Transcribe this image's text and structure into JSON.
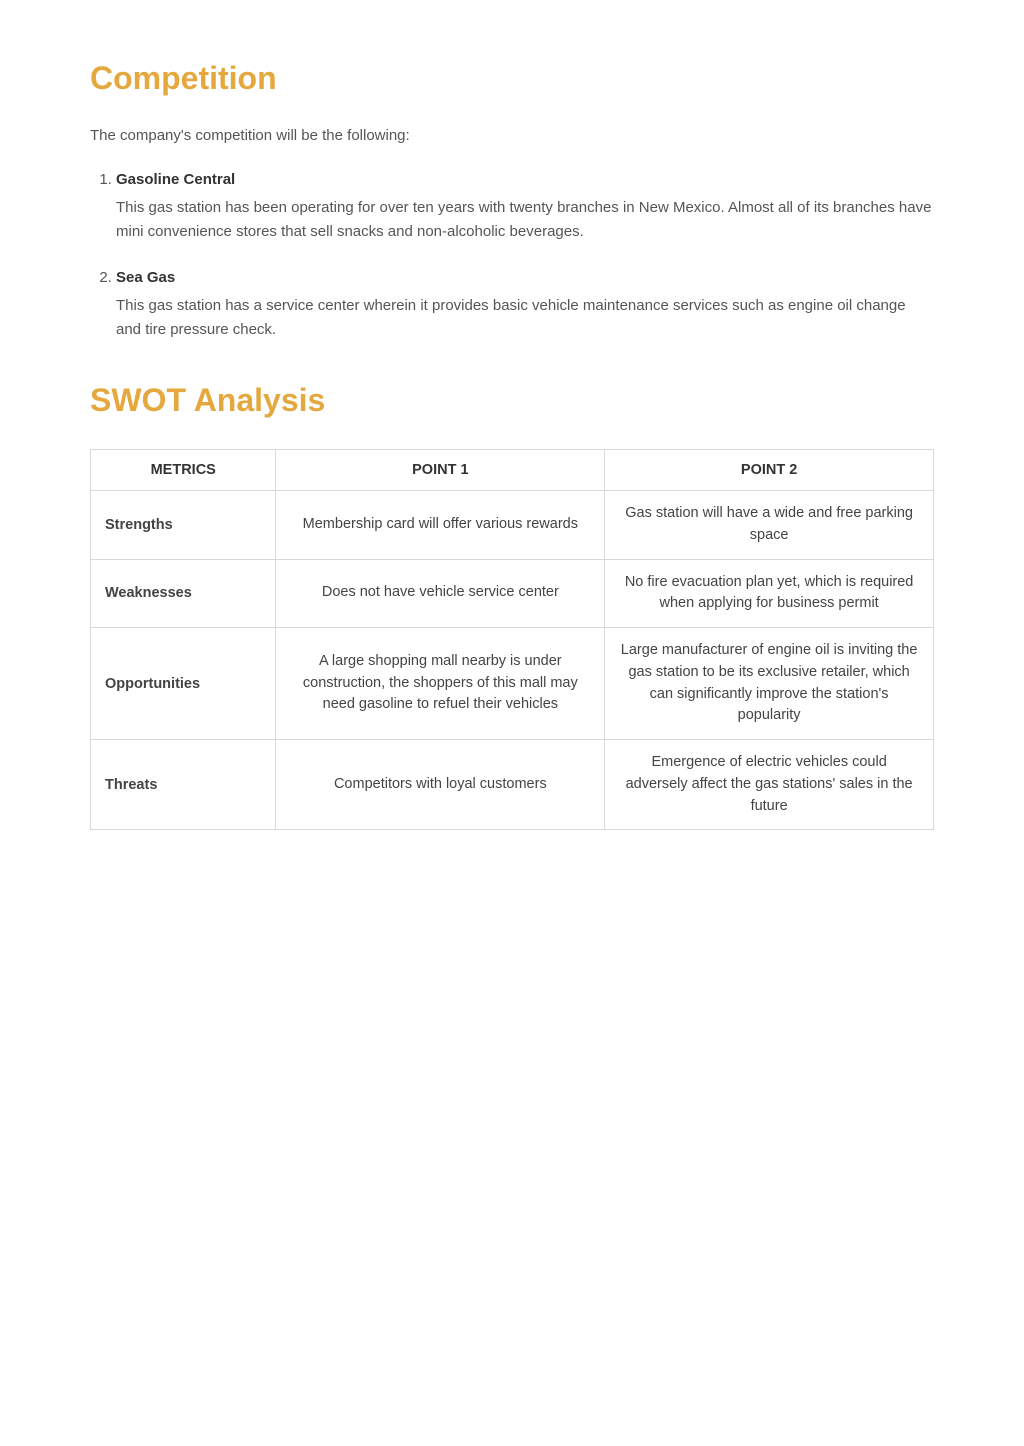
{
  "colors": {
    "heading": "#e5a83e",
    "body_text": "#555555",
    "strong_text": "#333333",
    "table_border": "#d8d8d8",
    "background": "#ffffff"
  },
  "typography": {
    "heading_fontsize": 32,
    "body_fontsize": 15,
    "table_fontsize": 14.5,
    "font_family": "Arial"
  },
  "competition": {
    "heading": "Competition",
    "intro": "The company's competition will be the following:",
    "items": [
      {
        "title": "Gasoline Central",
        "desc": "This gas station has been operating for over ten years with twenty branches in New Mexico. Almost all of its branches have mini convenience stores that sell snacks and non-alcoholic beverages."
      },
      {
        "title": "Sea Gas",
        "desc": "This gas station has a service center wherein it provides basic vehicle maintenance services such as engine oil change and tire pressure check."
      }
    ]
  },
  "swot": {
    "heading": "SWOT Analysis",
    "table": {
      "type": "table",
      "columns": [
        "METRICS",
        "POINT 1",
        "POINT 2"
      ],
      "rows": [
        {
          "metric": "Strengths",
          "point1": "Membership card will offer various rewards",
          "point2": "Gas station will have a wide and free parking space"
        },
        {
          "metric": "Weaknesses",
          "point1": "Does not have vehicle service center",
          "point2": "No fire evacuation plan yet, which is required when applying for business permit"
        },
        {
          "metric": "Opportunities",
          "point1": "A large shopping mall nearby is under construction, the shoppers of this mall may need gasoline to refuel their vehicles",
          "point2": "Large manufacturer of engine oil is inviting the gas station to be its exclusive retailer, which can significantly improve the station's popularity"
        },
        {
          "metric": "Threats",
          "point1": "Competitors with loyal customers",
          "point2": "Emergence of electric vehicles could adversely affect the gas stations' sales in the future"
        }
      ]
    }
  }
}
